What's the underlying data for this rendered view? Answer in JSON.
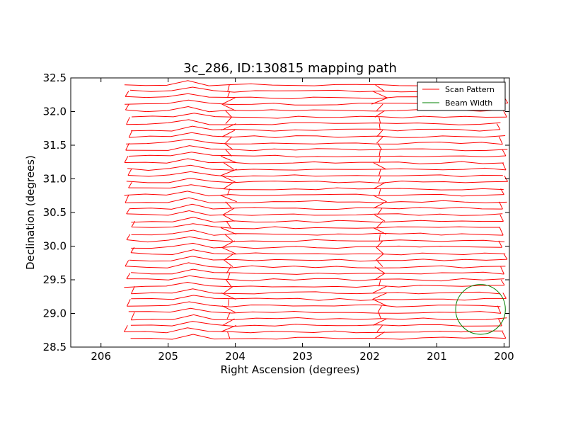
{
  "chart_data": {
    "type": "line",
    "title": "3c_286, ID:130815 mapping path",
    "xlabel": "Right Ascension (degrees)",
    "ylabel": "Declination (degrees)",
    "xlim": [
      206.45,
      199.92
    ],
    "ylim": [
      28.5,
      32.5
    ],
    "xticks": [
      206,
      205,
      204,
      203,
      202,
      201,
      200
    ],
    "xtick_labels": [
      "206",
      "205",
      "204",
      "203",
      "202",
      "201",
      "200"
    ],
    "yticks": [
      28.5,
      29.0,
      29.5,
      30.0,
      30.5,
      31.0,
      31.5,
      32.0,
      32.5
    ],
    "ytick_labels": [
      "28.5",
      "29.0",
      "29.5",
      "30.0",
      "30.5",
      "31.0",
      "31.5",
      "32.0",
      "32.5"
    ],
    "grid": false,
    "legend": {
      "location": "upper right",
      "entries": [
        {
          "label": "Scan Pattern",
          "color": "#ff0000"
        },
        {
          "label": "Beam Width",
          "color": "#008000"
        }
      ]
    },
    "series": [
      {
        "name": "Scan Pattern",
        "color": "#ff0000",
        "kind": "raster",
        "ra_start": 205.6,
        "ra_end": 200.0,
        "dec_start": 28.63,
        "dec_end": 32.4,
        "rows": 40
      },
      {
        "name": "Beam Width",
        "color": "#008000",
        "kind": "circle",
        "center_ra": 200.35,
        "center_dec": 29.06,
        "radius_deg": 0.37
      }
    ]
  }
}
